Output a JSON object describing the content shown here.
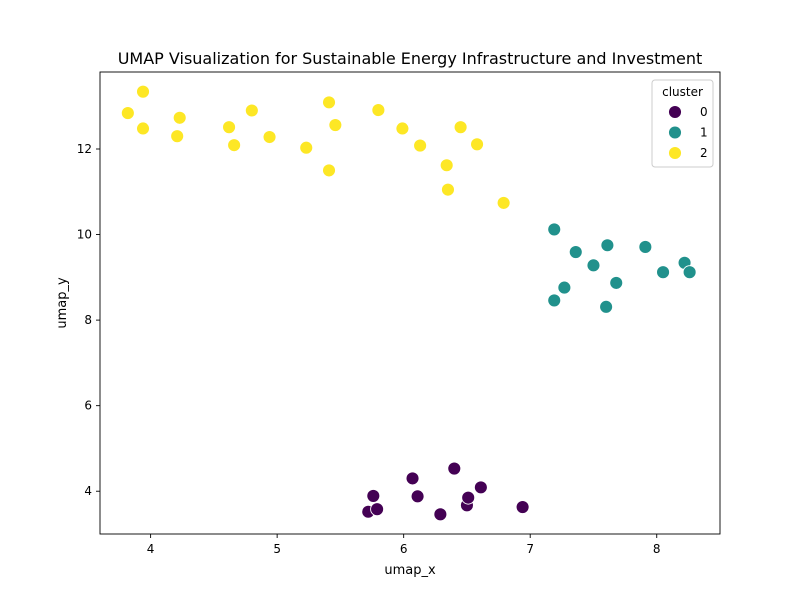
{
  "chart_data": {
    "type": "scatter",
    "title": "UMAP Visualization for Sustainable Energy Infrastructure and Investment",
    "xlabel": "umap_x",
    "ylabel": "umap_y",
    "xlim": [
      3.6,
      8.5
    ],
    "ylim": [
      3.0,
      13.8
    ],
    "xticks": [
      4,
      5,
      6,
      7,
      8
    ],
    "yticks": [
      4,
      6,
      8,
      10,
      12
    ],
    "grid": false,
    "legend": {
      "title": "cluster",
      "position": "top-right"
    },
    "series": [
      {
        "name": "0",
        "color": "#440154",
        "points": [
          [
            5.72,
            3.52
          ],
          [
            5.76,
            3.89
          ],
          [
            5.79,
            3.58
          ],
          [
            6.07,
            4.3
          ],
          [
            6.11,
            3.88
          ],
          [
            6.29,
            3.46
          ],
          [
            6.4,
            4.53
          ],
          [
            6.5,
            3.67
          ],
          [
            6.51,
            3.85
          ],
          [
            6.61,
            4.09
          ],
          [
            6.94,
            3.63
          ]
        ]
      },
      {
        "name": "1",
        "color": "#21918c",
        "points": [
          [
            7.19,
            10.12
          ],
          [
            7.19,
            8.46
          ],
          [
            7.27,
            8.76
          ],
          [
            7.36,
            9.59
          ],
          [
            7.5,
            9.28
          ],
          [
            7.6,
            8.31
          ],
          [
            7.61,
            9.75
          ],
          [
            7.68,
            8.87
          ],
          [
            7.91,
            9.71
          ],
          [
            8.05,
            9.12
          ],
          [
            8.22,
            9.34
          ],
          [
            8.26,
            9.12
          ]
        ]
      },
      {
        "name": "2",
        "color": "#fde725",
        "points": [
          [
            3.82,
            12.84
          ],
          [
            3.94,
            13.34
          ],
          [
            3.94,
            12.48
          ],
          [
            4.21,
            12.3
          ],
          [
            4.23,
            12.73
          ],
          [
            4.62,
            12.51
          ],
          [
            4.66,
            12.09
          ],
          [
            4.8,
            12.9
          ],
          [
            4.94,
            12.28
          ],
          [
            5.23,
            12.03
          ],
          [
            5.41,
            13.09
          ],
          [
            5.41,
            11.5
          ],
          [
            5.46,
            12.56
          ],
          [
            5.8,
            12.91
          ],
          [
            5.99,
            12.48
          ],
          [
            6.13,
            12.08
          ],
          [
            6.34,
            11.62
          ],
          [
            6.35,
            11.05
          ],
          [
            6.45,
            12.51
          ],
          [
            6.58,
            12.11
          ],
          [
            6.79,
            10.74
          ]
        ]
      }
    ]
  }
}
